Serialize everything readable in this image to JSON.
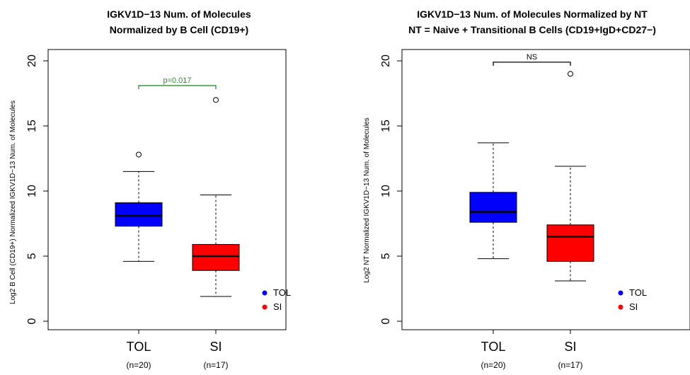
{
  "colors": {
    "TOL": "#0000ff",
    "SI": "#ff0000",
    "sig": "#2e8b2e",
    "ns": "#000000"
  },
  "chart_data": [
    {
      "type": "boxplot",
      "title_line1": "IGKV1D−13 Num. of Molecules",
      "title_line2": "Normalized by B Cell (CD19+)",
      "xlabel": "",
      "ylabel": "Log2 B Cell (CD19+) Normalized IGKV1D−13 Num. of Molecules",
      "ylim": [
        0,
        20
      ],
      "yticks": [
        0,
        5,
        10,
        15,
        20
      ],
      "categories": [
        "TOL",
        "SI"
      ],
      "sample_sizes": [
        "(n=20)",
        "(n=17)"
      ],
      "boxes": [
        {
          "name": "TOL",
          "whisker_low": 4.6,
          "q1": 7.3,
          "median": 8.1,
          "q3": 9.1,
          "whisker_high": 11.5,
          "outliers": [
            12.8
          ]
        },
        {
          "name": "SI",
          "whisker_low": 1.9,
          "q1": 3.9,
          "median": 5.0,
          "q3": 5.9,
          "whisker_high": 9.7,
          "outliers": [
            17.0
          ]
        }
      ],
      "annotation": {
        "text": "p=0.017",
        "y": 18.1,
        "style": "sig"
      },
      "legend": {
        "placement": "bottom-right",
        "entries": [
          "TOL",
          "SI"
        ]
      }
    },
    {
      "type": "boxplot",
      "title_line1": "IGKV1D−13 Num. of Molecules Normalized by NT",
      "title_line2": "NT = Naive + Transitional B Cells (CD19+IgD+CD27−)",
      "xlabel": "",
      "ylabel": "Log2 NT Normalized IGKV1D−13 Num. of Molecules",
      "ylim": [
        0,
        20
      ],
      "yticks": [
        0,
        5,
        10,
        15,
        20
      ],
      "categories": [
        "TOL",
        "SI"
      ],
      "sample_sizes": [
        "(n=20)",
        "(n=17)"
      ],
      "boxes": [
        {
          "name": "TOL",
          "whisker_low": 4.8,
          "q1": 7.6,
          "median": 8.4,
          "q3": 9.9,
          "whisker_high": 13.7,
          "outliers": []
        },
        {
          "name": "SI",
          "whisker_low": 3.1,
          "q1": 4.6,
          "median": 6.5,
          "q3": 7.4,
          "whisker_high": 11.9,
          "outliers": [
            19.0
          ]
        }
      ],
      "annotation": {
        "text": "NS",
        "y": 19.9,
        "style": "ns"
      },
      "legend": {
        "placement": "bottom-right",
        "entries": [
          "TOL",
          "SI"
        ]
      }
    }
  ]
}
